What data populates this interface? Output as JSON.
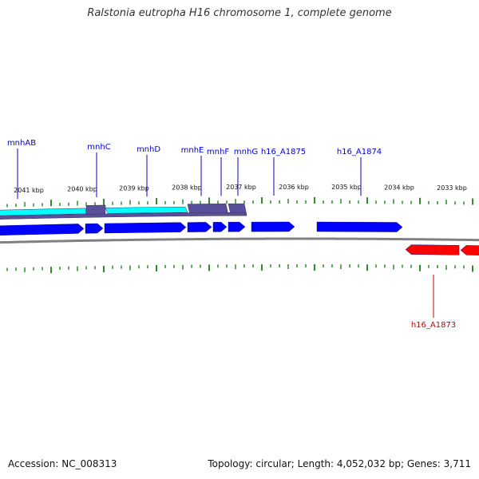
{
  "title": "Ralstonia eutropha H16 chromosome 1, complete genome",
  "footer": {
    "accession": "Accession: NC_008313",
    "summary": "Topology: circular; Length: 4,052,032 bp; Genes: 3,711"
  },
  "colors": {
    "forward_cds": "#0000ff",
    "reverse_cds": "#ff0000",
    "feature_dark": "#5a4f9a",
    "feature_cyan": "#00ffff",
    "backbone": "#808080",
    "tick": "#2e8b2e",
    "forward_label": "#0000cc",
    "reverse_label": "#cc0000"
  },
  "scale": {
    "top_labels": [
      "2041 kbp",
      "2040 kbp",
      "2039 kbp",
      "2038 kbp",
      "2037 kbp",
      "2036 kbp",
      "2035 kbp",
      "2034 kbp",
      "2033 kbp"
    ]
  },
  "genes": {
    "forward": [
      "mnhAB",
      "mnhC",
      "mnhD",
      "mnhE",
      "mnhF",
      "mnhG",
      "h16_A1875",
      "h16_A1874"
    ],
    "reverse": [
      "h16_A1873"
    ]
  }
}
